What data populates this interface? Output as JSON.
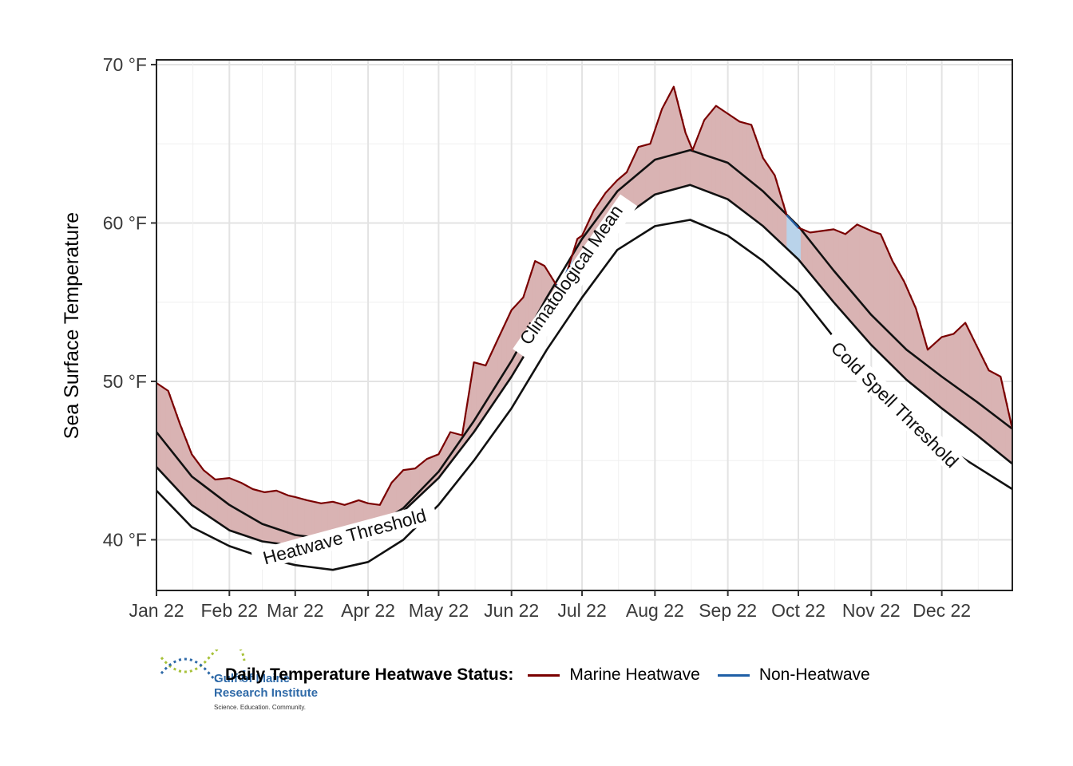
{
  "chart_data": {
    "type": "line",
    "title": "",
    "xlabel": "",
    "ylabel": "Sea Surface Temperature",
    "ylim": [
      36.8,
      70.3
    ],
    "xlim_days": [
      0,
      364
    ],
    "y_ticks": [
      {
        "value": 40,
        "label": "40 °F"
      },
      {
        "value": 50,
        "label": "50 °F"
      },
      {
        "value": 60,
        "label": "60 °F"
      },
      {
        "value": 70,
        "label": "70 °F"
      }
    ],
    "x_ticks": [
      {
        "day": 0,
        "label": "Jan 22"
      },
      {
        "day": 31,
        "label": "Feb 22"
      },
      {
        "day": 59,
        "label": "Mar 22"
      },
      {
        "day": 90,
        "label": "Apr 22"
      },
      {
        "day": 120,
        "label": "May 22"
      },
      {
        "day": 151,
        "label": "Jun 22"
      },
      {
        "day": 181,
        "label": "Jul 22"
      },
      {
        "day": 212,
        "label": "Aug 22"
      },
      {
        "day": 243,
        "label": "Sep 22"
      },
      {
        "day": 273,
        "label": "Oct 22"
      },
      {
        "day": 304,
        "label": "Nov 22"
      },
      {
        "day": 334,
        "label": "Dec 22"
      }
    ],
    "grid": true,
    "series": [
      {
        "name": "Heatwave Threshold",
        "role": "threshold",
        "color": "#111111",
        "x": [
          0,
          15,
          31,
          45,
          59,
          75,
          90,
          105,
          120,
          135,
          151,
          166,
          181,
          196,
          212,
          227,
          243,
          258,
          273,
          288,
          304,
          319,
          334,
          349,
          364
        ],
        "y": [
          46.8,
          44.0,
          42.2,
          41.0,
          40.3,
          40.0,
          40.6,
          42.0,
          44.3,
          47.5,
          51.3,
          55.3,
          59.0,
          62.0,
          64.0,
          64.6,
          63.8,
          62.0,
          59.8,
          57.0,
          54.2,
          52.0,
          50.3,
          48.7,
          47.0
        ]
      },
      {
        "name": "Climatological Mean",
        "role": "mean",
        "color": "#111111",
        "x": [
          0,
          15,
          31,
          45,
          59,
          75,
          90,
          105,
          120,
          135,
          151,
          166,
          181,
          196,
          212,
          227,
          243,
          258,
          273,
          288,
          304,
          319,
          334,
          349,
          364
        ],
        "y": [
          44.6,
          42.2,
          40.6,
          39.9,
          39.6,
          39.8,
          40.4,
          41.8,
          43.9,
          46.8,
          50.3,
          54.0,
          57.2,
          60.1,
          61.8,
          62.4,
          61.5,
          59.8,
          57.7,
          55.0,
          52.3,
          50.1,
          48.3,
          46.6,
          44.8
        ]
      },
      {
        "name": "Cold Spell Threshold",
        "role": "threshold",
        "color": "#111111",
        "x": [
          0,
          15,
          31,
          45,
          59,
          75,
          90,
          105,
          120,
          135,
          151,
          166,
          181,
          196,
          212,
          227,
          243,
          258,
          273,
          288,
          304,
          319,
          334,
          349,
          364
        ],
        "y": [
          43.1,
          40.8,
          39.6,
          38.9,
          38.4,
          38.1,
          38.6,
          40.0,
          42.2,
          45.0,
          48.3,
          52.0,
          55.3,
          58.3,
          59.8,
          60.2,
          59.2,
          57.6,
          55.6,
          52.8,
          50.0,
          47.8,
          46.0,
          44.6,
          43.2
        ]
      },
      {
        "name": "Daily Temperature",
        "role": "observed",
        "color": "#7a0000",
        "x": [
          0,
          5,
          10,
          15,
          20,
          25,
          31,
          36,
          41,
          46,
          51,
          56,
          59,
          64,
          70,
          75,
          80,
          86,
          90,
          95,
          100,
          105,
          110,
          115,
          120,
          125,
          130,
          135,
          140,
          145,
          151,
          156,
          161,
          165,
          170,
          172,
          175,
          179,
          181,
          186,
          191,
          196,
          200,
          205,
          210,
          215,
          220,
          225,
          228,
          233,
          238,
          243,
          248,
          253,
          258,
          263,
          268,
          273,
          278,
          283,
          288,
          293,
          298,
          304,
          308,
          313,
          318,
          323,
          328,
          334,
          339,
          344,
          349,
          354,
          359,
          364
        ],
        "y": [
          49.9,
          49.4,
          47.3,
          45.4,
          44.4,
          43.8,
          43.9,
          43.6,
          43.2,
          43.0,
          43.1,
          42.8,
          42.7,
          42.5,
          42.3,
          42.4,
          42.2,
          42.5,
          42.3,
          42.2,
          43.6,
          44.4,
          44.5,
          45.1,
          45.4,
          46.8,
          46.6,
          51.2,
          51.0,
          52.6,
          54.5,
          55.3,
          57.6,
          57.3,
          56.1,
          56.0,
          57.1,
          59.0,
          59.2,
          60.8,
          61.9,
          62.7,
          63.2,
          64.8,
          65.0,
          67.2,
          68.6,
          65.7,
          64.6,
          66.5,
          67.4,
          66.9,
          66.4,
          66.2,
          64.1,
          63.0,
          60.5,
          59.7,
          59.4,
          59.5,
          59.6,
          59.3,
          59.9,
          59.5,
          59.3,
          57.6,
          56.3,
          54.6,
          52.0,
          52.8,
          53.0,
          53.7,
          52.2,
          50.7,
          50.3,
          47.0
        ]
      }
    ],
    "fill_between": [
      {
        "between": [
          "Daily Temperature",
          "Climatological Mean"
        ],
        "when": "above threshold",
        "color": "#d9b3b3",
        "meaning": "Marine Heatwave"
      },
      {
        "between": [
          "Daily Temperature",
          "Climatological Mean"
        ],
        "when": "below threshold",
        "color": "#b9d3ea",
        "meaning": "Non-Heatwave"
      }
    ],
    "curve_labels": [
      {
        "text": "Heatwave Threshold",
        "series": "Heatwave Threshold"
      },
      {
        "text": "Climatological Mean",
        "series": "Climatological Mean"
      },
      {
        "text": "Cold Spell Threshold",
        "series": "Cold Spell Threshold"
      }
    ],
    "legend": {
      "title": "Daily Temperature Heatwave Status:",
      "placement": "bottom",
      "items": [
        {
          "label": "Marine Heatwave",
          "color": "#7a0000"
        },
        {
          "label": "Non-Heatwave",
          "color": "#1f5fa6"
        }
      ]
    }
  },
  "logo": {
    "line1": "Gulf of Maine",
    "line2": "Research Institute",
    "tagline": "Science. Education. Community."
  }
}
